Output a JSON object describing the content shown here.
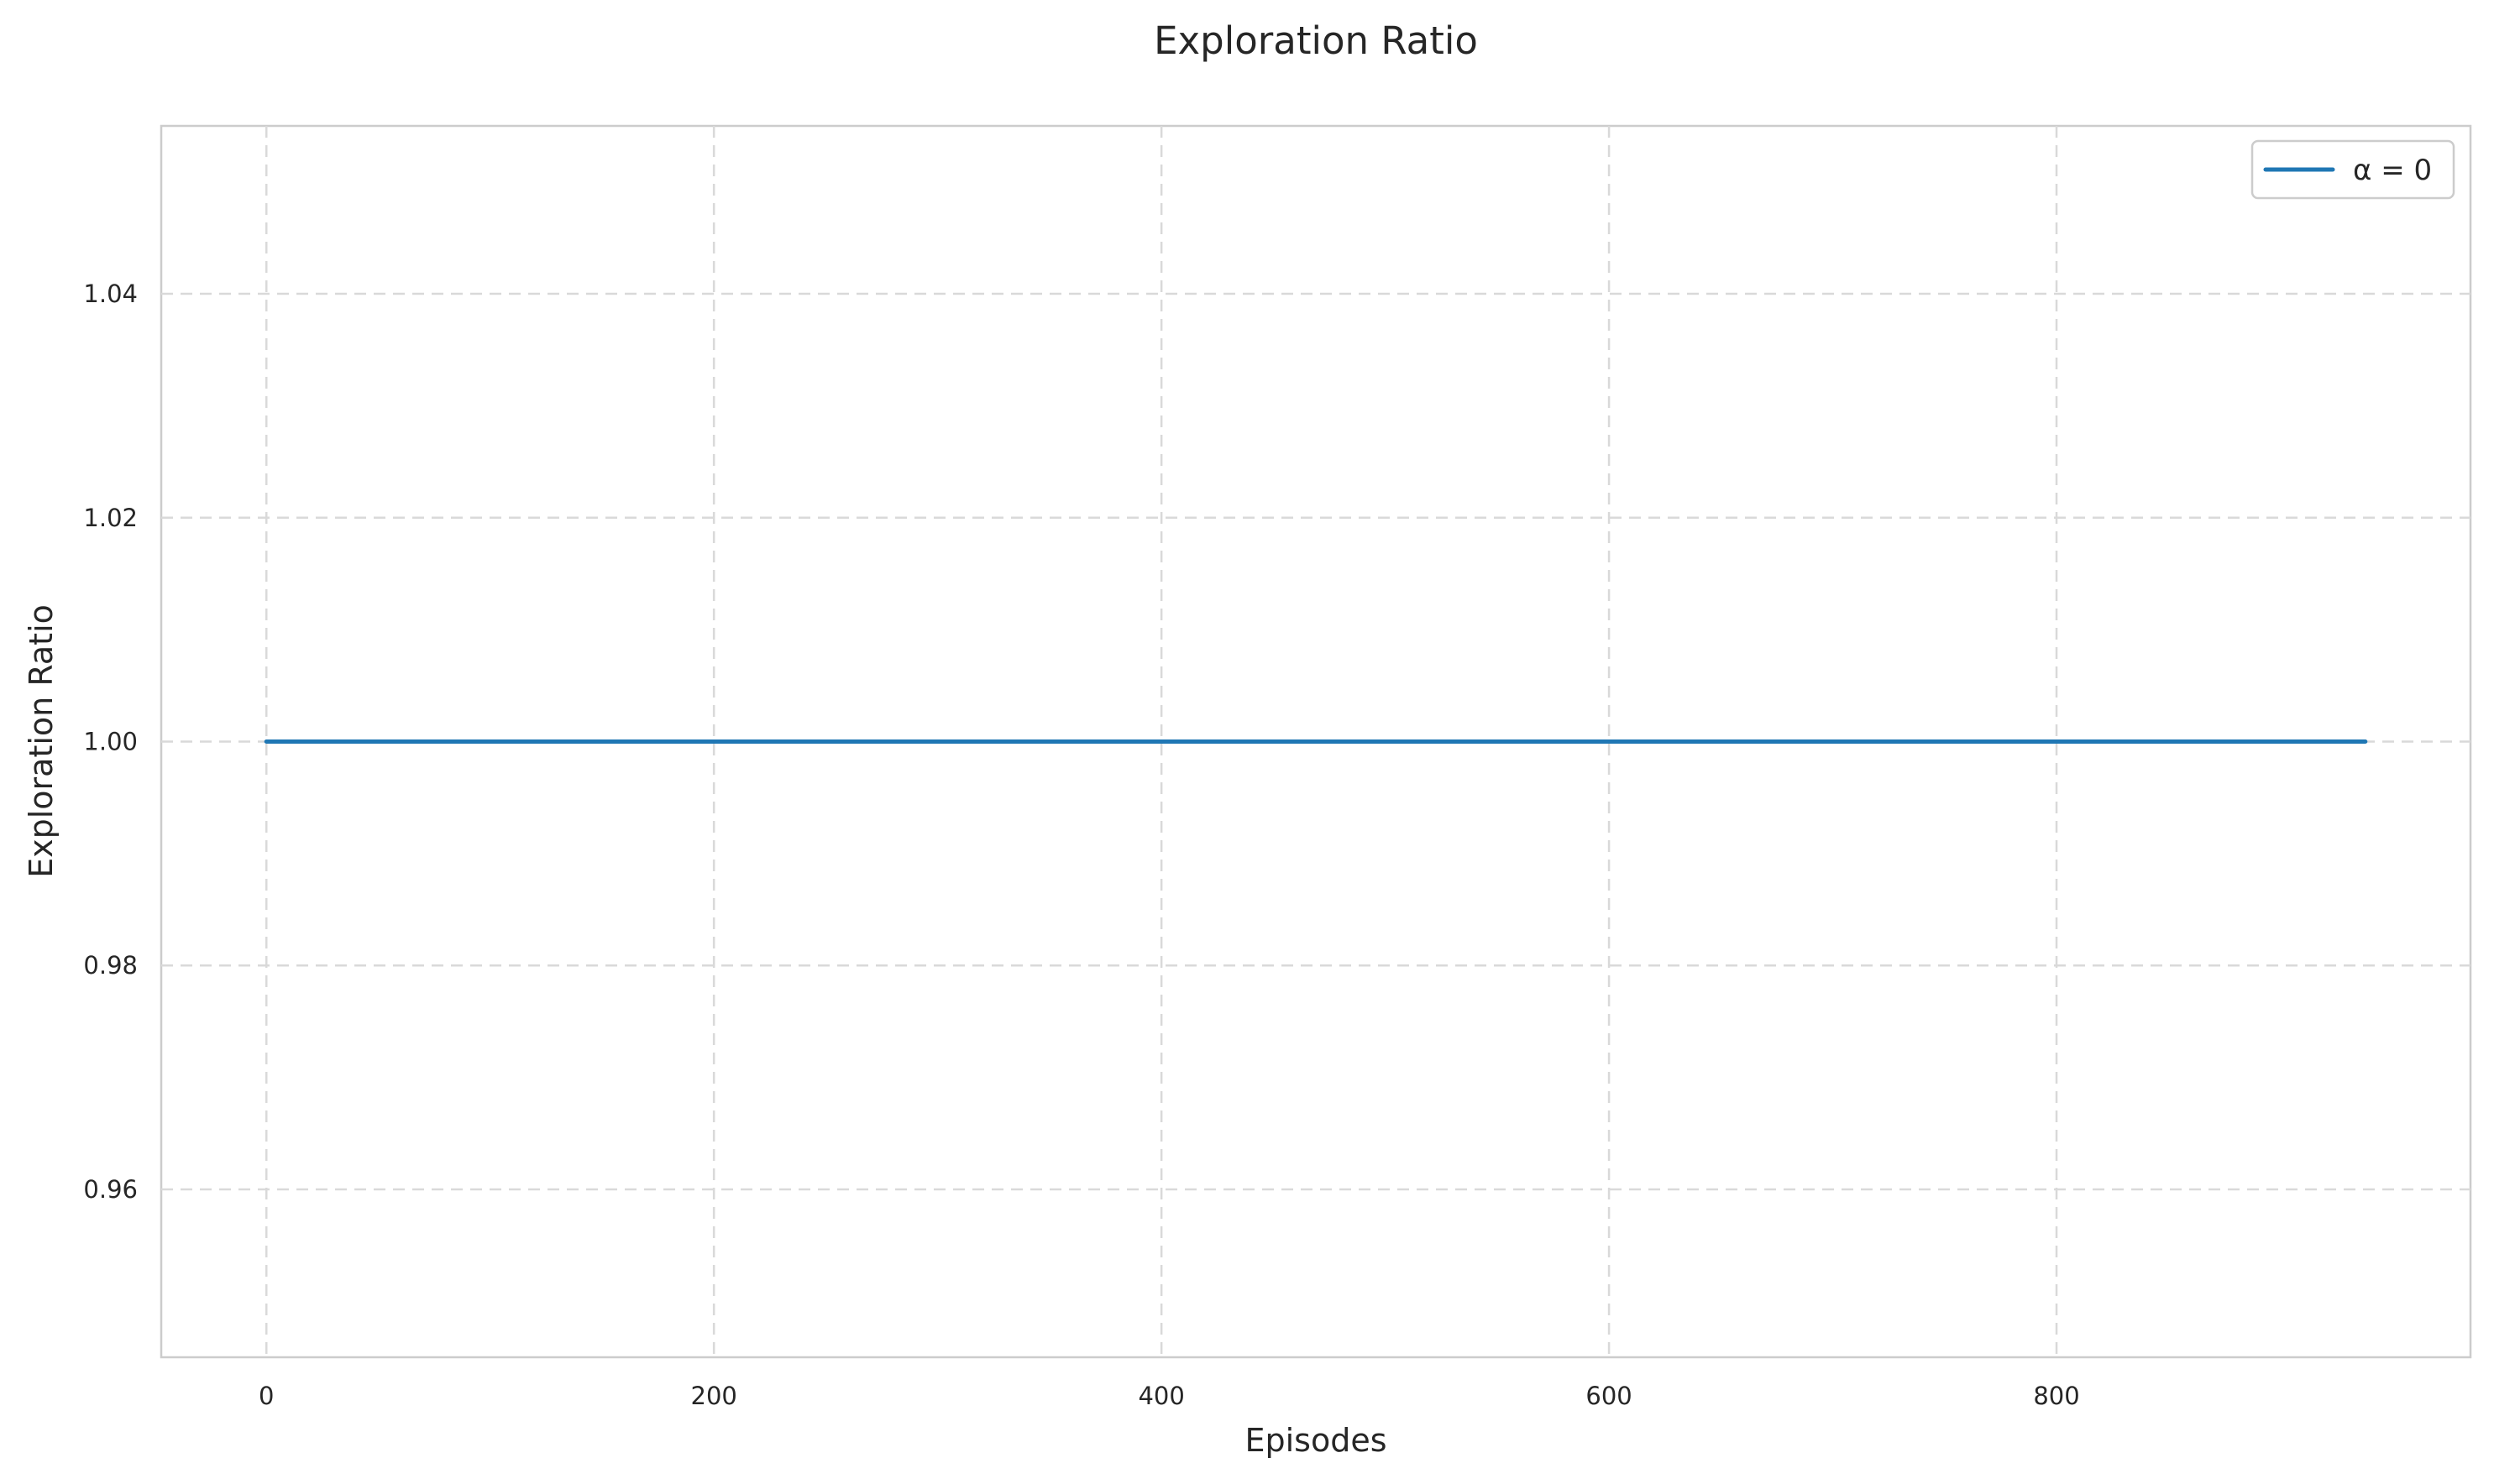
{
  "chart_data": {
    "type": "line",
    "title": "Exploration Ratio",
    "xlabel": "Episodes",
    "ylabel": "Exploration Ratio",
    "xlim": [
      -47,
      985
    ],
    "ylim": [
      0.945,
      1.055
    ],
    "xticks": [
      0,
      200,
      400,
      600,
      800
    ],
    "xtick_labels": [
      "0",
      "200",
      "400",
      "600",
      "800"
    ],
    "yticks": [
      0.96,
      0.98,
      1.0,
      1.02,
      1.04
    ],
    "ytick_labels": [
      "0.96",
      "0.98",
      "1.00",
      "1.02",
      "1.04"
    ],
    "grid": true,
    "legend_position": "top-right",
    "series": [
      {
        "name": "α = 0",
        "color": "#1f77b4",
        "x": [
          0,
          100,
          200,
          300,
          400,
          500,
          600,
          700,
          800,
          900,
          938
        ],
        "y": [
          1.0,
          1.0,
          1.0,
          1.0,
          1.0,
          1.0,
          1.0,
          1.0,
          1.0,
          1.0,
          1.0
        ]
      }
    ]
  }
}
